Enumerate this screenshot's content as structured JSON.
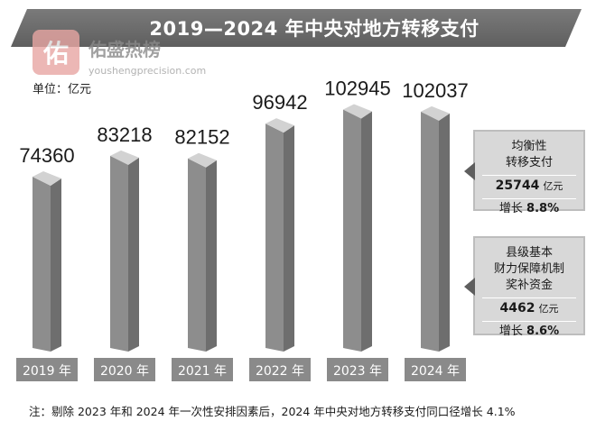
{
  "header": {
    "title": "2019—2024 年中央对地方转移支付",
    "unit": "单位：亿元"
  },
  "watermark": {
    "logo_char": "佑",
    "name": "佑盛热榜",
    "url": "youshengprecision.com"
  },
  "chart_data": {
    "type": "bar",
    "title": "2019—2024 年中央对地方转移支付",
    "ylabel": "单位：亿元",
    "xlabel": "",
    "categories": [
      "2019 年",
      "2020 年",
      "2021 年",
      "2022 年",
      "2023 年",
      "2024 年"
    ],
    "values": [
      74360,
      83218,
      82152,
      96942,
      102945,
      102037
    ],
    "ylim": [
      0,
      115000
    ],
    "grid": false,
    "legend": "none"
  },
  "callouts": [
    {
      "title_lines": [
        "均衡性",
        "转移支付"
      ],
      "amount": "25744",
      "amount_unit": "亿元",
      "growth_label": "增长",
      "growth_value": "8.8%"
    },
    {
      "title_lines": [
        "县级基本",
        "财力保障机制",
        "奖补资金"
      ],
      "amount": "4462",
      "amount_unit": "亿元",
      "growth_label": "增长",
      "growth_value": "8.6%"
    }
  ],
  "footnote": "注：剔除 2023 年和 2024 年一次性安排因素后，2024 年中央对地方转移支付同口径增长 4.1%",
  "colors": {
    "bar_front": "#8d8d8d",
    "bar_side": "#6e6e6e",
    "bar_top": "#d2d2d2",
    "label_box": "#8a8a8a",
    "banner": "#686868"
  }
}
